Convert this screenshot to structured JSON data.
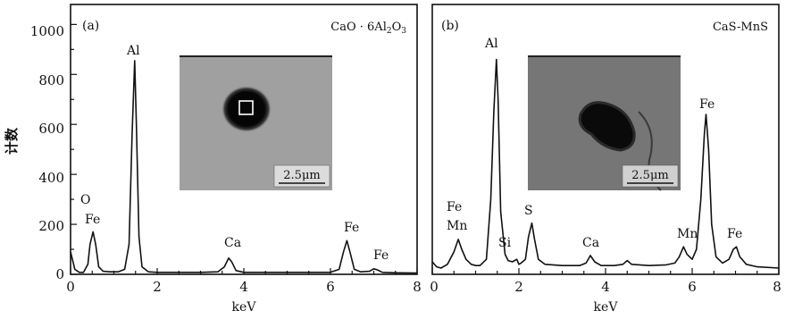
{
  "chart_data": [
    {
      "type": "line",
      "panel_label": "(a)",
      "compound": {
        "base": "CaO · 6Al",
        "sub1": "2",
        "mid": "O",
        "sub2": "3"
      },
      "xlabel": "keV",
      "ylabel": "计数",
      "xlim": [
        0,
        8
      ],
      "ylim": [
        0,
        1080
      ],
      "x_ticks": [
        "0",
        "2",
        "4",
        "6",
        "8"
      ],
      "y_ticks": [
        "0",
        "200",
        "400",
        "600",
        "800",
        "1000"
      ],
      "series": [
        {
          "points": [
            [
              0.0,
              90
            ],
            [
              0.05,
              55
            ],
            [
              0.1,
              20
            ],
            [
              0.2,
              8
            ],
            [
              0.3,
              8
            ],
            [
              0.4,
              40
            ],
            [
              0.45,
              120
            ],
            [
              0.52,
              170
            ],
            [
              0.58,
              120
            ],
            [
              0.65,
              30
            ],
            [
              0.75,
              12
            ],
            [
              0.9,
              10
            ],
            [
              1.1,
              10
            ],
            [
              1.25,
              20
            ],
            [
              1.35,
              120
            ],
            [
              1.42,
              560
            ],
            [
              1.48,
              855
            ],
            [
              1.52,
              600
            ],
            [
              1.58,
              150
            ],
            [
              1.65,
              30
            ],
            [
              1.8,
              10
            ],
            [
              2.0,
              8
            ],
            [
              2.5,
              8
            ],
            [
              3.0,
              8
            ],
            [
              3.4,
              10
            ],
            [
              3.55,
              30
            ],
            [
              3.65,
              65
            ],
            [
              3.72,
              50
            ],
            [
              3.82,
              15
            ],
            [
              4.0,
              8
            ],
            [
              4.5,
              8
            ],
            [
              5.0,
              8
            ],
            [
              5.5,
              8
            ],
            [
              6.0,
              8
            ],
            [
              6.2,
              20
            ],
            [
              6.3,
              90
            ],
            [
              6.38,
              135
            ],
            [
              6.45,
              90
            ],
            [
              6.55,
              20
            ],
            [
              6.7,
              10
            ],
            [
              6.9,
              12
            ],
            [
              7.0,
              22
            ],
            [
              7.08,
              18
            ],
            [
              7.2,
              8
            ],
            [
              7.5,
              6
            ],
            [
              8.0,
              5
            ]
          ]
        }
      ],
      "annotations": [
        "O",
        "Fe",
        "Al",
        "Ca",
        "Fe",
        "Fe"
      ],
      "inset_scale": "2.5μm"
    },
    {
      "type": "line",
      "panel_label": "(b)",
      "compound_text": "CaS-MnS",
      "xlabel": "keV",
      "xlim": [
        0,
        8
      ],
      "ylim": [
        0,
        1080
      ],
      "x_ticks": [
        "0",
        "2",
        "4",
        "6",
        "8"
      ],
      "series": [
        {
          "points": [
            [
              0.0,
              50
            ],
            [
              0.1,
              30
            ],
            [
              0.2,
              25
            ],
            [
              0.35,
              40
            ],
            [
              0.5,
              90
            ],
            [
              0.6,
              140
            ],
            [
              0.68,
              100
            ],
            [
              0.78,
              60
            ],
            [
              0.9,
              40
            ],
            [
              1.0,
              35
            ],
            [
              1.1,
              35
            ],
            [
              1.25,
              60
            ],
            [
              1.35,
              300
            ],
            [
              1.42,
              650
            ],
            [
              1.48,
              860
            ],
            [
              1.52,
              700
            ],
            [
              1.58,
              250
            ],
            [
              1.68,
              80
            ],
            [
              1.75,
              55
            ],
            [
              1.85,
              50
            ],
            [
              1.95,
              60
            ],
            [
              2.0,
              40
            ],
            [
              2.05,
              45
            ],
            [
              2.15,
              60
            ],
            [
              2.22,
              150
            ],
            [
              2.3,
              205
            ],
            [
              2.36,
              140
            ],
            [
              2.45,
              60
            ],
            [
              2.6,
              40
            ],
            [
              3.0,
              35
            ],
            [
              3.4,
              35
            ],
            [
              3.55,
              45
            ],
            [
              3.65,
              75
            ],
            [
              3.75,
              50
            ],
            [
              3.9,
              35
            ],
            [
              4.2,
              35
            ],
            [
              4.4,
              40
            ],
            [
              4.5,
              55
            ],
            [
              4.6,
              40
            ],
            [
              5.0,
              35
            ],
            [
              5.4,
              38
            ],
            [
              5.6,
              45
            ],
            [
              5.7,
              70
            ],
            [
              5.8,
              110
            ],
            [
              5.88,
              80
            ],
            [
              6.0,
              60
            ],
            [
              6.1,
              100
            ],
            [
              6.2,
              300
            ],
            [
              6.28,
              560
            ],
            [
              6.32,
              640
            ],
            [
              6.38,
              500
            ],
            [
              6.45,
              200
            ],
            [
              6.55,
              70
            ],
            [
              6.7,
              45
            ],
            [
              6.85,
              60
            ],
            [
              6.95,
              100
            ],
            [
              7.02,
              110
            ],
            [
              7.1,
              70
            ],
            [
              7.25,
              40
            ],
            [
              7.5,
              30
            ],
            [
              8.0,
              25
            ]
          ]
        }
      ],
      "annotations": [
        "Fe",
        "Mn",
        "Al",
        "Si",
        "S",
        "Ca",
        "Mn",
        "Fe",
        "Fe"
      ],
      "inset_scale": "2.5μm"
    }
  ]
}
